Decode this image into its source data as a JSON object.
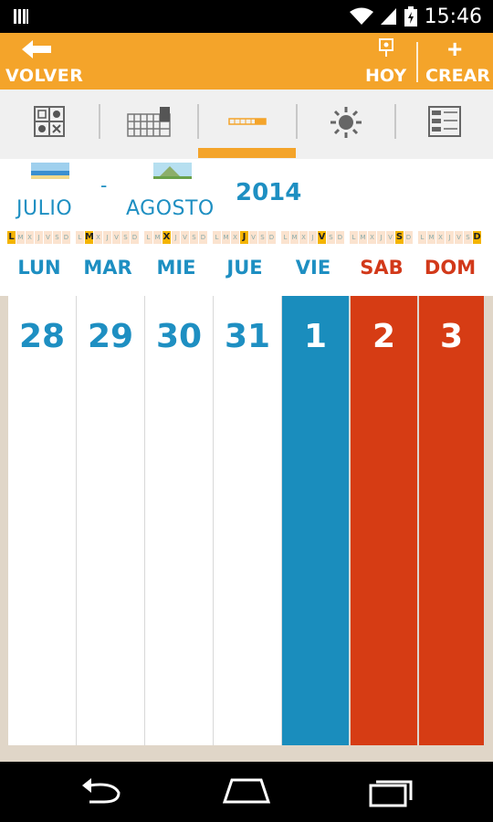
{
  "status_bar": {
    "time": "15:46"
  },
  "action_bar": {
    "back_label": "VOLVER",
    "today_label": "HOY",
    "create_label": "CREAR",
    "color": "#f4a42a"
  },
  "view_tabs": [
    {
      "name": "activities-grid-icon"
    },
    {
      "name": "month-grid-icon"
    },
    {
      "name": "week-strip-icon",
      "selected": true
    },
    {
      "name": "sun-icon"
    },
    {
      "name": "list-icon"
    }
  ],
  "header": {
    "month_start": "JULIO",
    "separator": "-",
    "month_end": "AGOSTO",
    "year": "2014"
  },
  "weekdays": [
    {
      "name": "LUN",
      "letter": "L",
      "color": "#1e8fc2"
    },
    {
      "name": "MAR",
      "letter": "M",
      "color": "#1e8fc2"
    },
    {
      "name": "MIE",
      "letter": "X",
      "color": "#1e8fc2"
    },
    {
      "name": "JUE",
      "letter": "J",
      "color": "#1e8fc2"
    },
    {
      "name": "VIE",
      "letter": "V",
      "color": "#1e8fc2"
    },
    {
      "name": "SAB",
      "letter": "S",
      "color": "#d2391a"
    },
    {
      "name": "DOM",
      "letter": "D",
      "color": "#d2391a"
    }
  ],
  "mini_letters": [
    "L",
    "M",
    "X",
    "J",
    "V",
    "S",
    "D"
  ],
  "days": [
    {
      "num": "28",
      "bg": "#ffffff",
      "fg": "#1e8fc2"
    },
    {
      "num": "29",
      "bg": "#ffffff",
      "fg": "#1e8fc2"
    },
    {
      "num": "30",
      "bg": "#ffffff",
      "fg": "#1e8fc2"
    },
    {
      "num": "31",
      "bg": "#ffffff",
      "fg": "#1e8fc2"
    },
    {
      "num": "1",
      "bg": "#1a8dbd",
      "fg": "#ffffff"
    },
    {
      "num": "2",
      "bg": "#d63c14",
      "fg": "#ffffff"
    },
    {
      "num": "3",
      "bg": "#d63c14",
      "fg": "#ffffff"
    }
  ],
  "nav_bar": {
    "buttons": [
      {
        "name": "back-nav-icon"
      },
      {
        "name": "home-nav-icon"
      },
      {
        "name": "recents-nav-icon"
      }
    ]
  }
}
